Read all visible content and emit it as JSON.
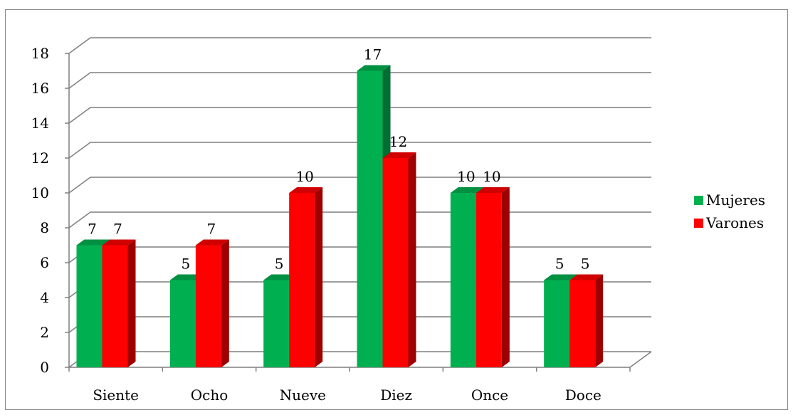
{
  "chart_data": {
    "type": "bar",
    "categories": [
      "Siente",
      "Ocho",
      "Nueve",
      "Diez",
      "Once",
      "Doce"
    ],
    "series": [
      {
        "name": "Mujeres",
        "values": [
          7,
          5,
          5,
          17,
          10,
          5
        ],
        "color": "#00b050"
      },
      {
        "name": "Varones",
        "values": [
          7,
          7,
          10,
          12,
          10,
          5
        ],
        "color": "#ff0000"
      }
    ],
    "ylim": [
      0,
      18
    ],
    "yticks": [
      "0",
      "2",
      "4",
      "6",
      "8",
      "10",
      "12",
      "14",
      "16",
      "18"
    ],
    "grid": true,
    "legend_position": "right",
    "three_d": true
  }
}
